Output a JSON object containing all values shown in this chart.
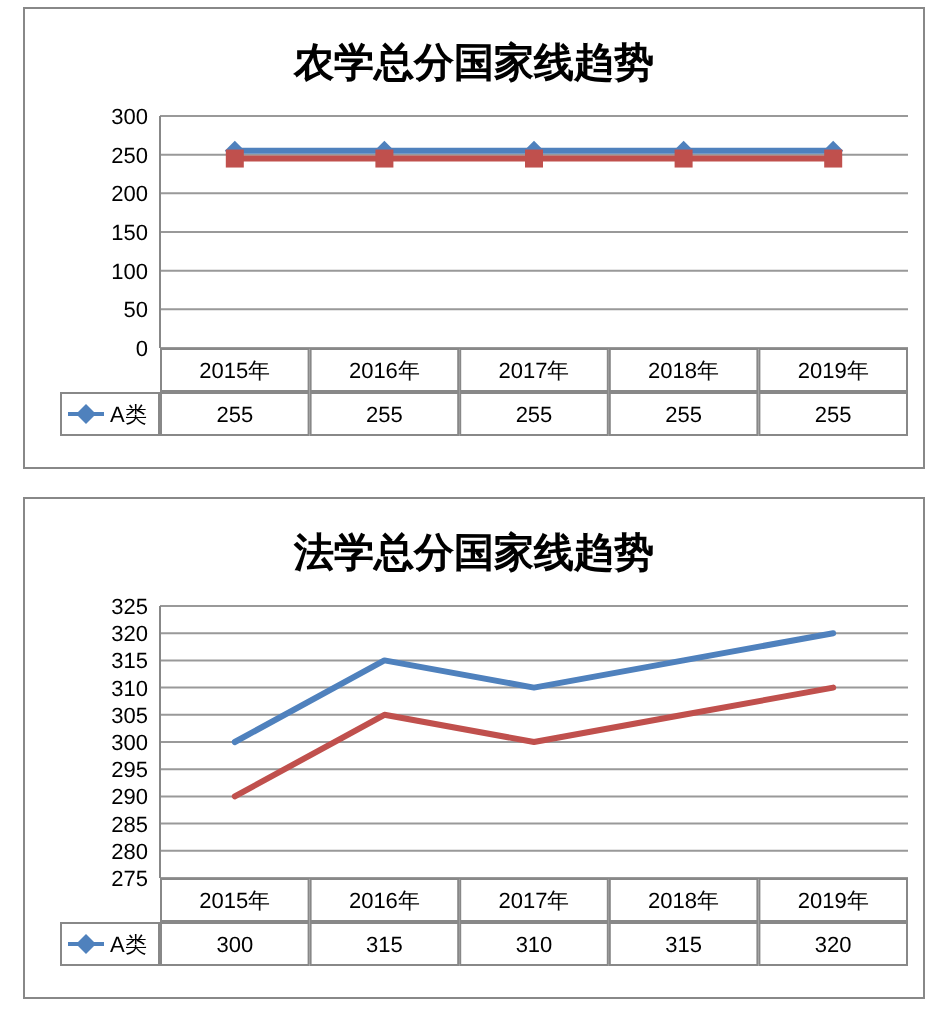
{
  "chart_data": [
    {
      "type": "line",
      "title": "农学总分国家线趋势",
      "categories": [
        "2015年",
        "2016年",
        "2017年",
        "2018年",
        "2019年"
      ],
      "ylim": [
        0,
        300
      ],
      "yticks": [
        0,
        50,
        100,
        150,
        200,
        250,
        300
      ],
      "grid": "y",
      "legend": "bottom",
      "series": [
        {
          "name": "A类",
          "color": "#4f81bd",
          "marker": "diamond",
          "values": [
            255,
            255,
            255,
            255,
            255
          ],
          "value_labels": [
            "255",
            "255",
            "255",
            "255",
            "255"
          ]
        },
        {
          "color": "#c0504d",
          "marker": "square",
          "values": [
            245,
            245,
            245,
            245,
            245
          ]
        }
      ]
    },
    {
      "type": "line",
      "title": "法学总分国家线趋势",
      "categories": [
        "2015年",
        "2016年",
        "2017年",
        "2018年",
        "2019年"
      ],
      "ylim": [
        275,
        325
      ],
      "yticks": [
        275,
        280,
        285,
        290,
        295,
        300,
        305,
        310,
        315,
        320,
        325
      ],
      "grid": "y",
      "legend": "bottom",
      "series": [
        {
          "name": "A类",
          "color": "#4f81bd",
          "marker": "none",
          "values": [
            300,
            315,
            310,
            315,
            320
          ],
          "value_labels": [
            "300",
            "315",
            "310",
            "315",
            "320"
          ]
        },
        {
          "color": "#c0504d",
          "marker": "none",
          "values": [
            290,
            305,
            300,
            305,
            310
          ]
        }
      ]
    }
  ]
}
